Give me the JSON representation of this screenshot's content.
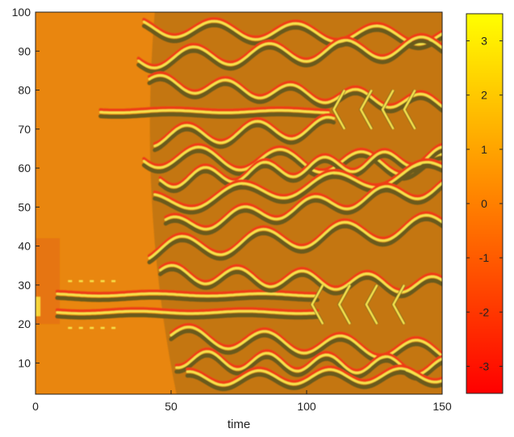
{
  "chart_data": {
    "type": "heatmap",
    "title": "",
    "xlabel": "time",
    "ylabel": "",
    "xlim": [
      0,
      150
    ],
    "ylim": [
      2,
      100
    ],
    "xticks": [
      0,
      50,
      100,
      150
    ],
    "yticks": [
      10,
      20,
      30,
      40,
      50,
      60,
      70,
      80,
      90,
      100
    ],
    "colorbar": {
      "range": [
        -3.5,
        3.5
      ],
      "ticks": [
        -3,
        -2,
        -1,
        0,
        1,
        2,
        3
      ],
      "colormap": "autumn",
      "low_color": "#ff0000",
      "high_color": "#ffff00"
    },
    "field": "Spatiotemporal pattern: uniform orange background for time < ~40 (except a narrow bright band near y~25 from the left edge and a horizontal streak near y~75 starting around t~25); for t > ~40 a dense field of oscillating yellow/red/dark-olive wavy stripes, with prominent long horizontal stripes near y~75 and y~25 ending in chevron patterns at t~100-140."
  },
  "colors": {
    "background": "#e9860f",
    "stripe_yellow": "#f6e24c",
    "stripe_red": "#ee3d15",
    "stripe_dark": "#6b5a1d"
  }
}
